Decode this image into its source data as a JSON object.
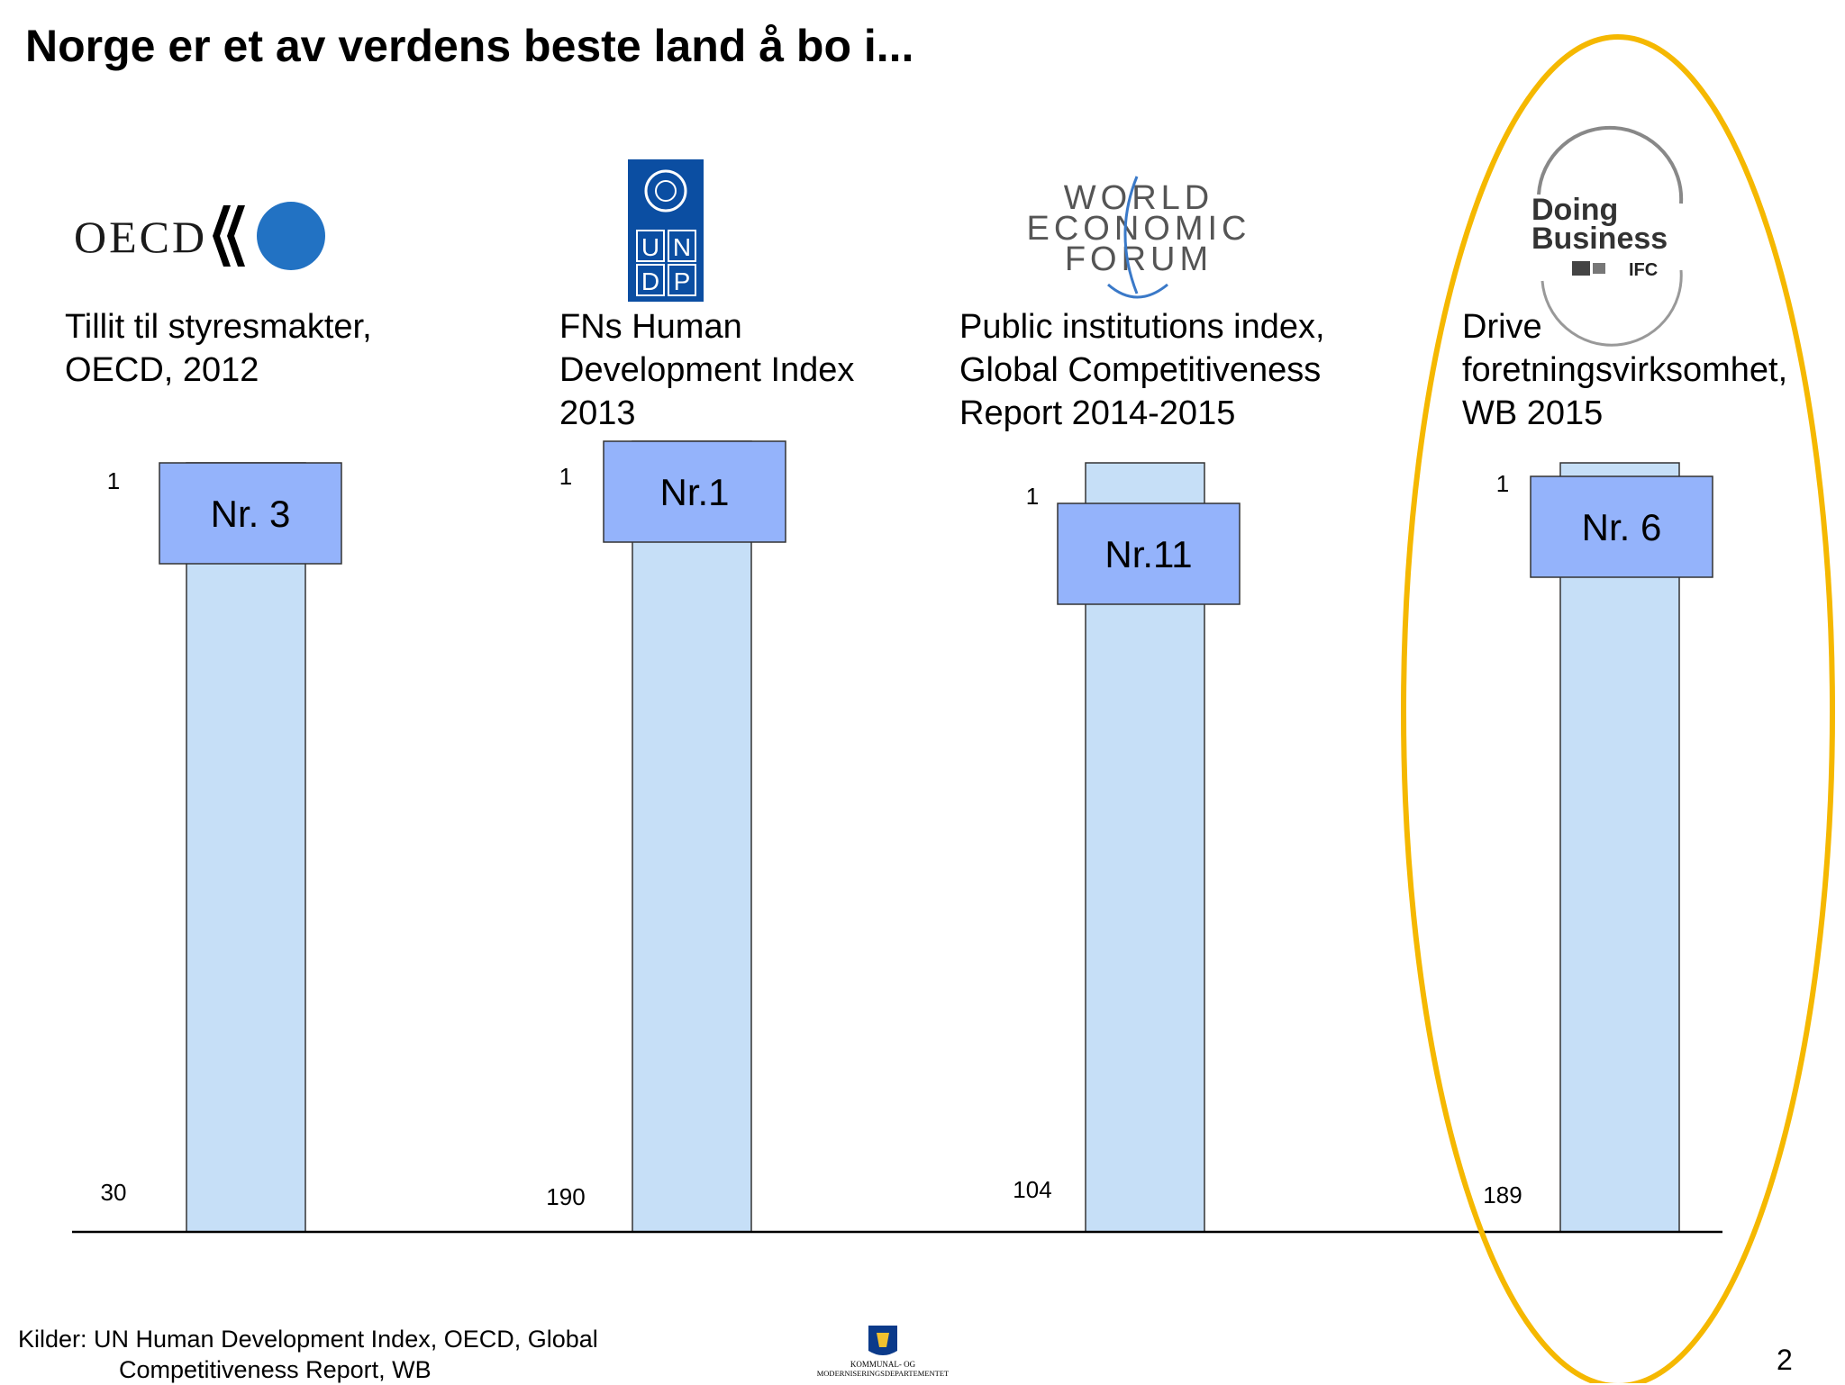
{
  "title": "Norge er et av verdens beste land å bo i...",
  "logos": {
    "oecd": "OECD",
    "undp": [
      "U",
      "N",
      "D",
      "P"
    ],
    "wef": [
      "WORLD",
      "ECONOMIC",
      "FORUM"
    ],
    "doing_business": [
      "Doing",
      "Business",
      "IFC"
    ],
    "department": [
      "KOMMUNAL- OG",
      "MODERNISERINGSDEPARTEMENTET"
    ]
  },
  "colors": {
    "bar_fill": "#c6dff7",
    "label_fill": "#94b3fb",
    "highlight_ellipse": "#f5b800",
    "undp_blue": "#0b4ea2",
    "oecd_blue": "#2272c3"
  },
  "chart_data": {
    "type": "bar",
    "note": "Rank bars: top tick = rank 1 (best), bottom tick = number of countries ranked",
    "groups": [
      {
        "caption": [
          "Tillit til styresmakter,",
          "OECD, 2012"
        ],
        "top_tick": "1",
        "bottom_tick": "30",
        "rank_label": "Nr. 3",
        "rank": 3,
        "total": 30
      },
      {
        "caption": [
          "FNs Human",
          "Development Index",
          "2013"
        ],
        "top_tick": "1",
        "bottom_tick": "190",
        "rank_label": "Nr.1",
        "rank": 1,
        "total": 190
      },
      {
        "caption": [
          "Public institutions index,",
          "Global Competitiveness",
          "Report 2014-2015"
        ],
        "top_tick": "1",
        "bottom_tick": "104",
        "rank_label": "Nr.11",
        "rank": 11,
        "total": 104
      },
      {
        "caption": [
          "Drive",
          "foretningsvirksomhet,",
          "WB 2015"
        ],
        "top_tick": "1",
        "bottom_tick": "189",
        "rank_label": "Nr. 6",
        "rank": 6,
        "total": 189
      }
    ],
    "highlighted_group": 3
  },
  "footer": {
    "sources_line1": "Kilder: UN Human Development Index, OECD, Global",
    "sources_line2": "Competitiveness Report, WB"
  },
  "page_number": "2"
}
